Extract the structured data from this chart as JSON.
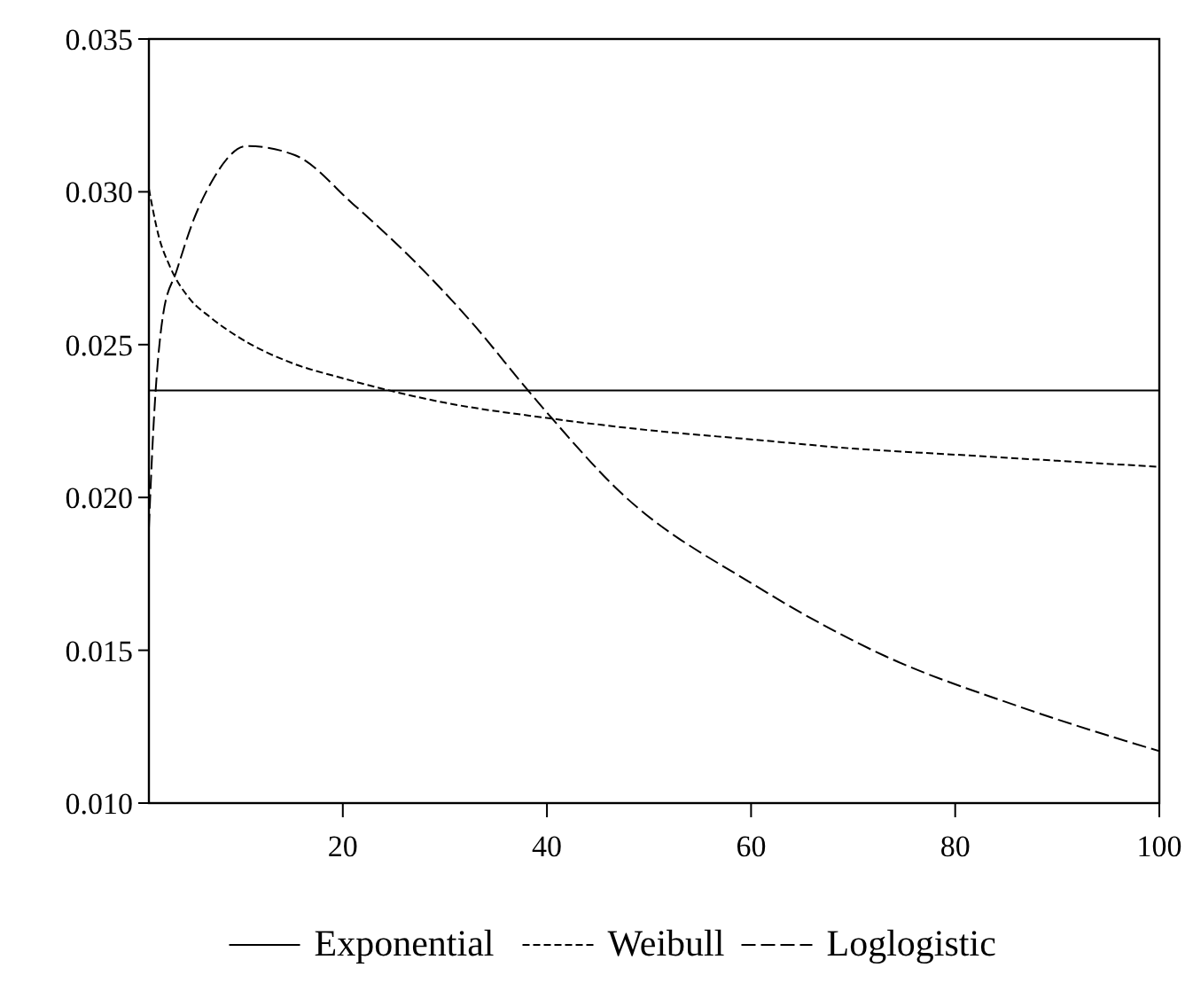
{
  "chart_data": {
    "type": "line",
    "xlim": [
      1,
      100
    ],
    "ylim": [
      0.01,
      0.035
    ],
    "xticks": [
      20,
      40,
      60,
      80,
      100
    ],
    "yticks": [
      {
        "value": 0.01,
        "label": "0.010"
      },
      {
        "value": 0.015,
        "label": "0.015"
      },
      {
        "value": 0.02,
        "label": "0.020"
      },
      {
        "value": 0.025,
        "label": "0.025"
      },
      {
        "value": 0.03,
        "label": "0.030"
      },
      {
        "value": 0.035,
        "label": "0.035"
      }
    ],
    "legend": "bottom",
    "grid": false,
    "series": [
      {
        "name": "Exponential",
        "color": "#000000",
        "line_style": "solid",
        "x": [
          1,
          100
        ],
        "values": [
          0.0235,
          0.0235
        ]
      },
      {
        "name": "Weibull",
        "color": "#000000",
        "line_style": "dotted",
        "x": [
          1,
          2,
          3,
          5,
          7,
          10,
          15,
          20,
          30,
          40,
          50,
          60,
          70,
          80,
          90,
          100
        ],
        "values": [
          0.0301,
          0.0285,
          0.0276,
          0.0265,
          0.0259,
          0.0252,
          0.0244,
          0.0239,
          0.0231,
          0.0226,
          0.0222,
          0.0219,
          0.0216,
          0.0214,
          0.0212,
          0.021
        ]
      },
      {
        "name": "Loglogistic",
        "color": "#000000",
        "line_style": "dashed",
        "x": [
          1,
          1.4,
          2.4,
          3.7,
          5.4,
          7.1,
          10.6,
          15.3,
          21,
          26.8,
          32.7,
          38.4,
          40.2,
          47.1,
          60.5,
          73.2,
          85.9,
          100
        ],
        "values": [
          0.019,
          0.022,
          0.026,
          0.0274,
          0.0291,
          0.0303,
          0.0315,
          0.0312,
          0.0296,
          0.0278,
          0.0257,
          0.0234,
          0.0227,
          0.0202,
          0.0171,
          0.0148,
          0.0132,
          0.0117
        ]
      }
    ]
  }
}
